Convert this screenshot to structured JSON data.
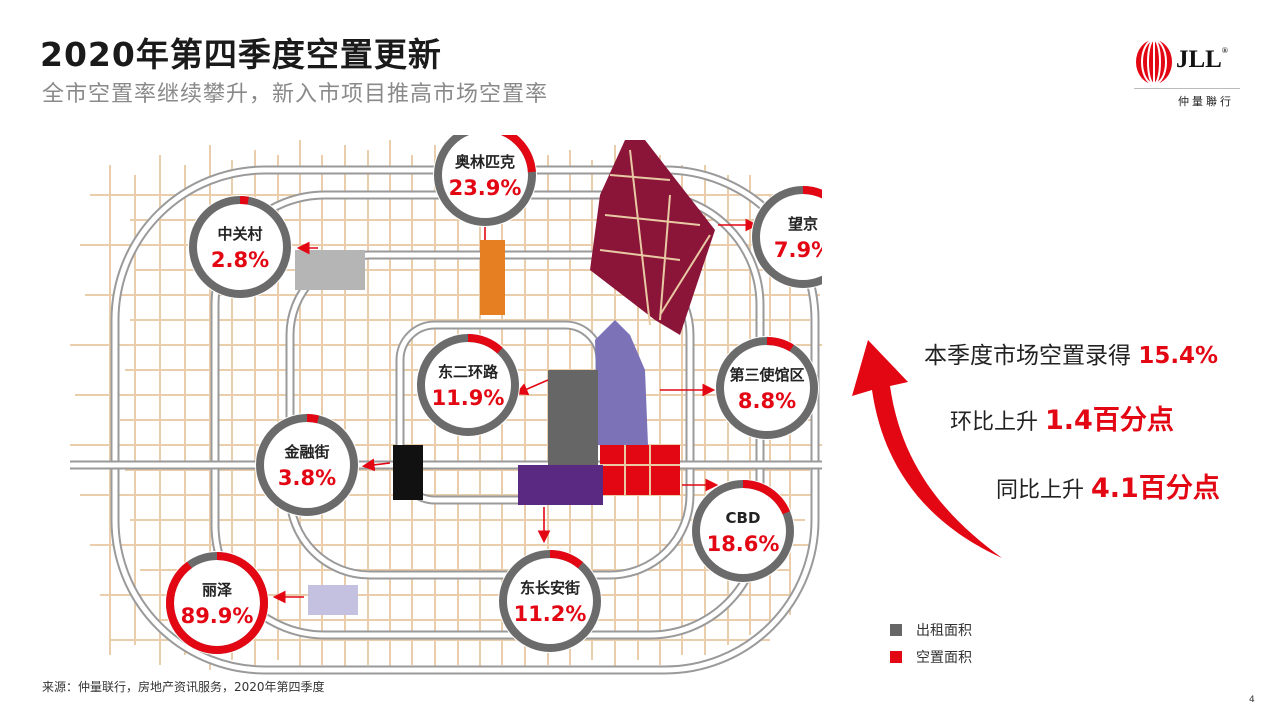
{
  "header": {
    "title": "2020年第四季度空置更新",
    "subtitle": "全市空置率继续攀升，新入市项目推高市场空置率"
  },
  "logo": {
    "text": "JLL",
    "sub": "仲量聯行"
  },
  "colors": {
    "accent": "#e30613",
    "leased": "#666666",
    "ring_gray": "#6b6b6b",
    "road": "#e8c9a4"
  },
  "markets": [
    {
      "name": "奥林匹克",
      "vacancy": "23.9%",
      "fraction": 0.239
    },
    {
      "name": "中关村",
      "vacancy": "2.8%",
      "fraction": 0.028
    },
    {
      "name": "望京",
      "vacancy": "7.9%",
      "fraction": 0.079
    },
    {
      "name": "东二环路",
      "vacancy": "11.9%",
      "fraction": 0.119
    },
    {
      "name": "第三使馆区",
      "vacancy": "8.8%",
      "fraction": 0.088
    },
    {
      "name": "金融街",
      "vacancy": "3.8%",
      "fraction": 0.038
    },
    {
      "name": "CBD",
      "vacancy": "18.6%",
      "fraction": 0.186
    },
    {
      "name": "东长安街",
      "vacancy": "11.2%",
      "fraction": 0.112
    },
    {
      "name": "丽泽",
      "vacancy": "89.9%",
      "fraction": 0.899
    }
  ],
  "stats": {
    "line1_text": "本季度市场空置录得",
    "line1_value": "15.4%",
    "line2_text": "环比上升",
    "line2_value": "1.4百分点",
    "line3_text": "同比上升",
    "line3_value": "4.1百分点"
  },
  "legend": {
    "leased": "出租面积",
    "vacant": "空置面积"
  },
  "footer": {
    "source": "来源：仲量联行，房地产资讯服务，2020年第四季度",
    "page": "4"
  }
}
